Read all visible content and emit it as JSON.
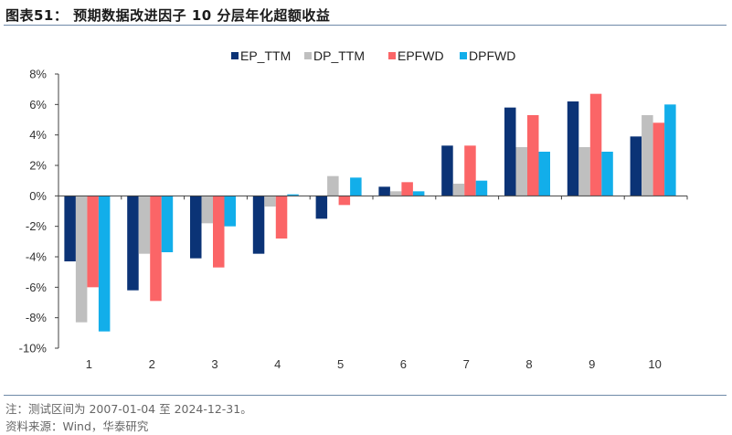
{
  "header": {
    "title": "图表51：  预期数据改进因子 10 分层年化超额收益"
  },
  "footer": {
    "note": "注：测试区间为 2007-01-04 至 2024-12-31。",
    "source": "资料来源：Wind，华泰研究"
  },
  "chart_data": {
    "type": "bar",
    "title": "预期数据改进因子 10 分层年化超额收益",
    "xlabel": "",
    "ylabel": "",
    "categories": [
      "1",
      "2",
      "3",
      "4",
      "5",
      "6",
      "7",
      "8",
      "9",
      "10"
    ],
    "ylim": [
      -10,
      8
    ],
    "yticks": [
      8,
      6,
      4,
      2,
      0,
      -2,
      -4,
      -6,
      -8,
      -10
    ],
    "ytick_labels": [
      "8%",
      "6%",
      "4%",
      "2%",
      "0%",
      "-2%",
      "-4%",
      "-6%",
      "-8%",
      "-10%"
    ],
    "value_unit": "%",
    "grid": false,
    "legend_position": "top-center",
    "series": [
      {
        "name": "EP_TTM",
        "color": "#0b3376",
        "values": [
          -4.3,
          -6.2,
          -4.1,
          -3.8,
          -1.5,
          0.6,
          3.3,
          5.8,
          6.2,
          3.9
        ]
      },
      {
        "name": "DP_TTM",
        "color": "#bfbfbf",
        "values": [
          -8.3,
          -3.8,
          -1.8,
          -0.7,
          1.3,
          0.3,
          0.8,
          3.2,
          3.2,
          5.3
        ]
      },
      {
        "name": "EPFWD",
        "color": "#fb6567",
        "values": [
          -6.0,
          -6.9,
          -4.7,
          -2.8,
          -0.6,
          0.9,
          3.3,
          5.3,
          6.7,
          4.8
        ]
      },
      {
        "name": "DPFWD",
        "color": "#12aeea",
        "values": [
          -8.9,
          -3.7,
          -2.0,
          0.1,
          1.2,
          0.3,
          1.0,
          2.9,
          2.9,
          6.0
        ]
      }
    ]
  }
}
